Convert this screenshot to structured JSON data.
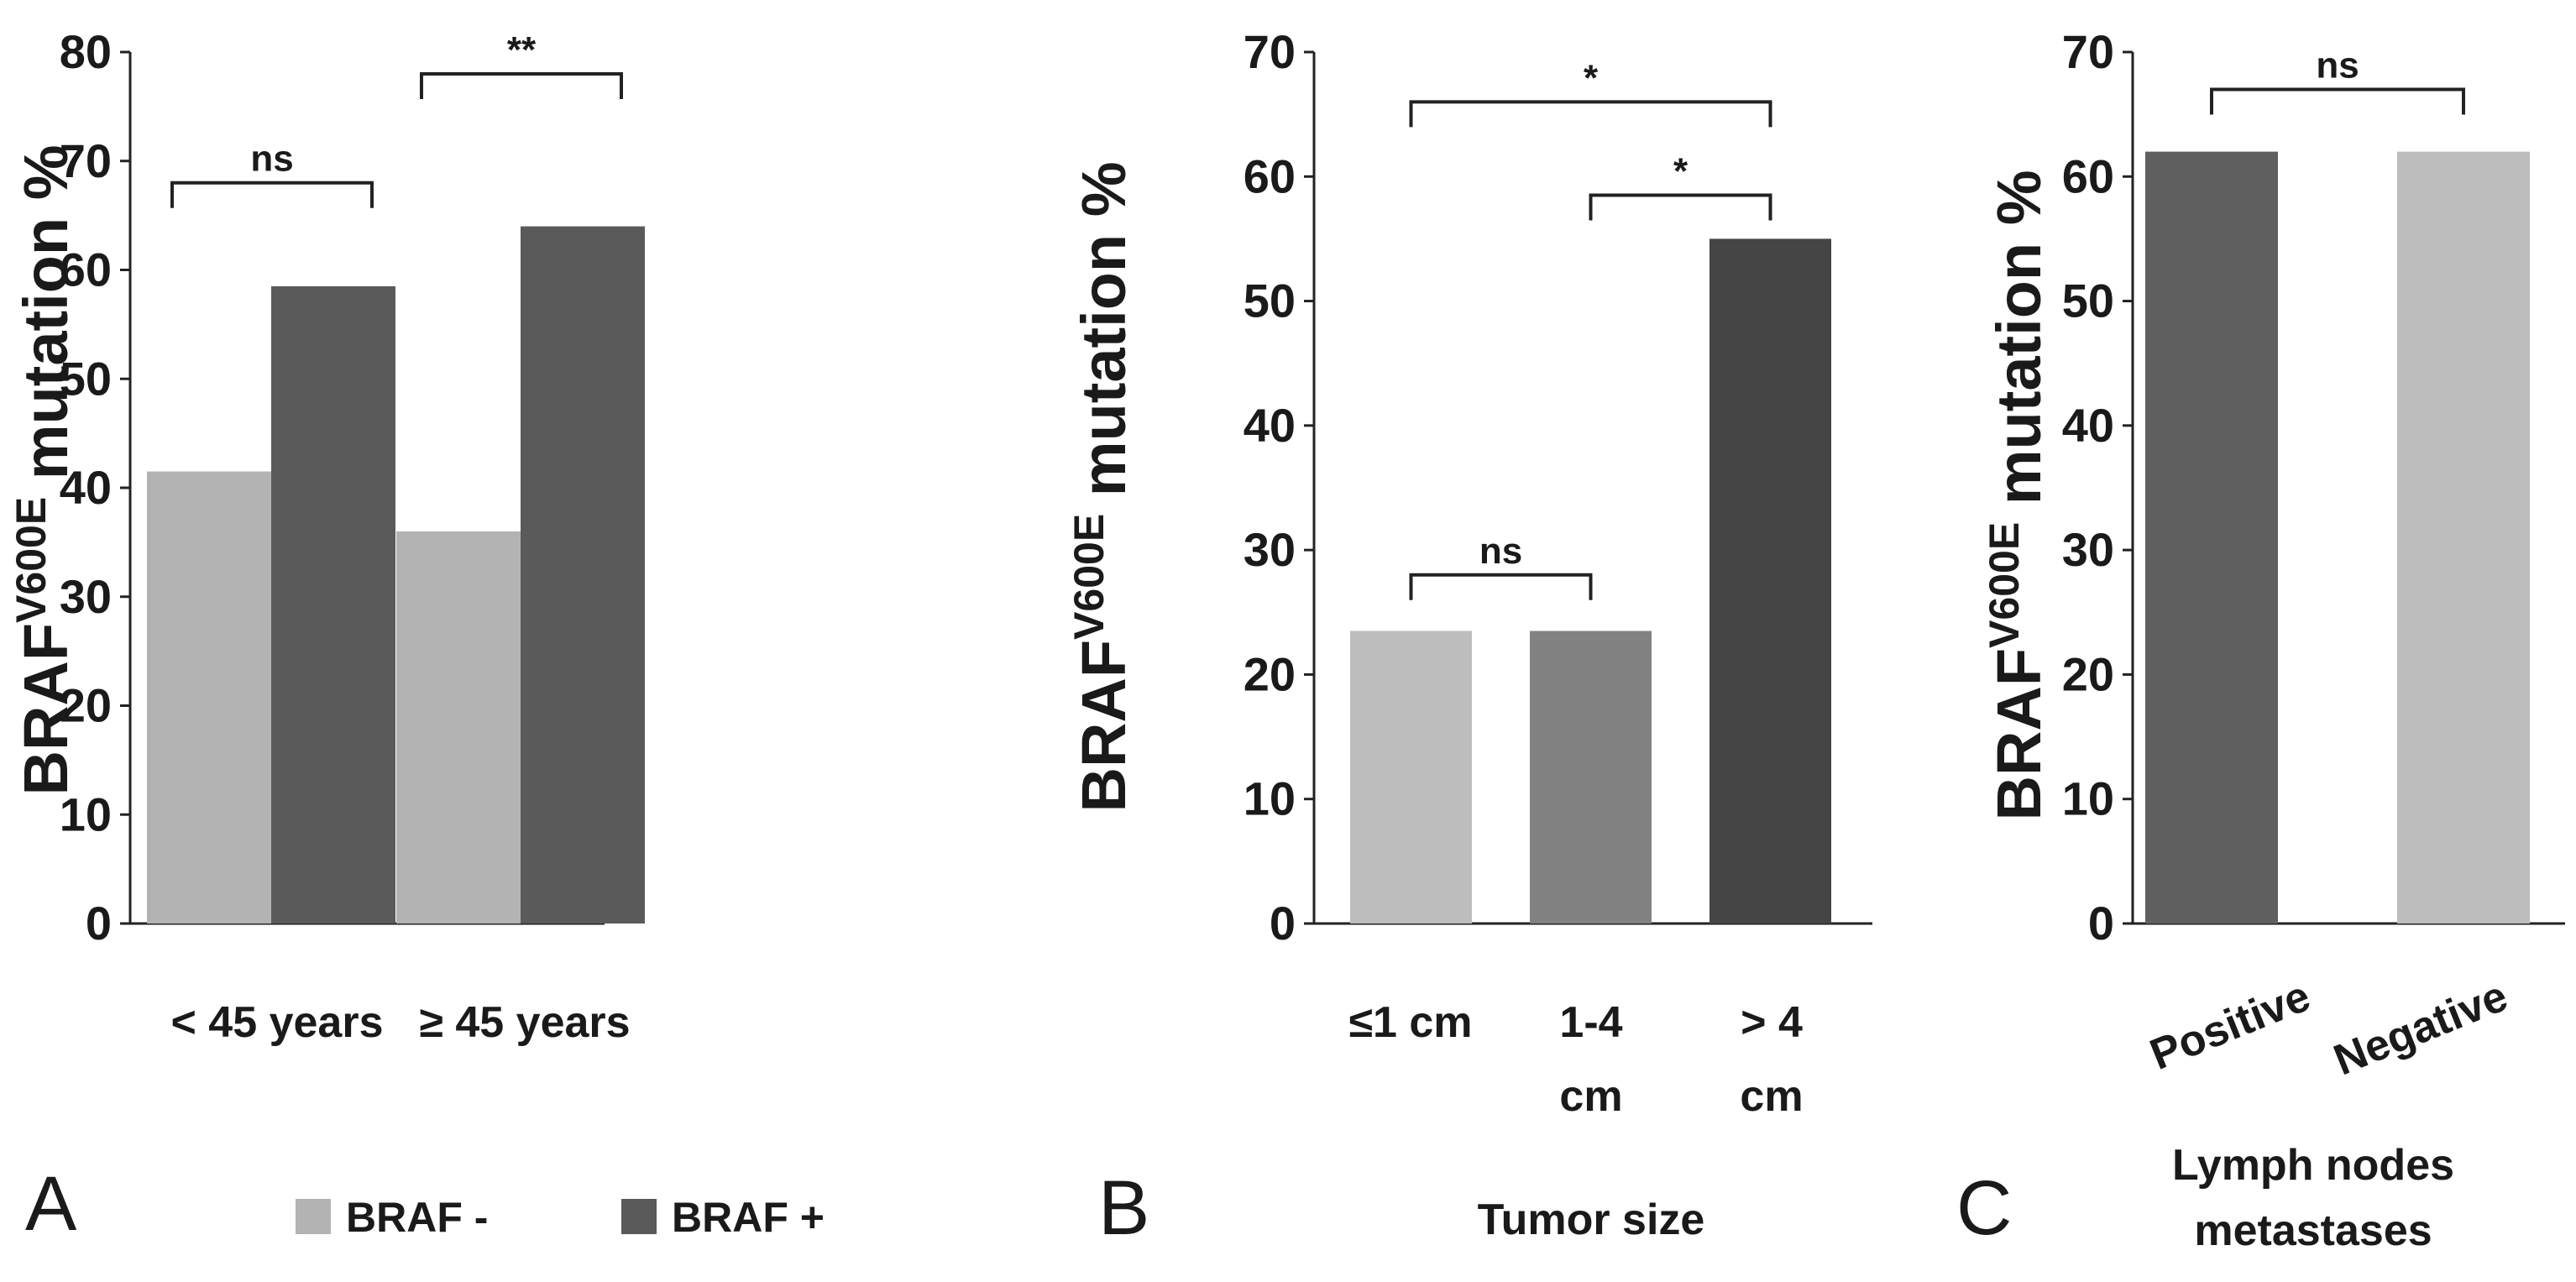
{
  "chart_data": [
    {
      "panel": "A",
      "type": "bar",
      "categories": [
        "< 45 years",
        "≥ 45 years"
      ],
      "series": [
        {
          "name": "BRAF -",
          "color": "#b3b3b3",
          "values": [
            41.5,
            36
          ]
        },
        {
          "name": "BRAF +",
          "color": "#5a5a5a",
          "values": [
            58.5,
            64
          ]
        }
      ],
      "ylabel_main": "BRAF",
      "ylabel_sup": "V600E",
      "ylabel_tail": " mutation %",
      "ylim": [
        0,
        80
      ],
      "yticks": [
        "0",
        "10",
        "20",
        "30",
        "40",
        "50",
        "60",
        "70",
        "80"
      ],
      "legend": [
        {
          "label": "BRAF -",
          "color": "#b3b3b3"
        },
        {
          "label": "BRAF +",
          "color": "#5a5a5a"
        }
      ],
      "annotations": [
        {
          "label": "ns",
          "category": "< 45 years",
          "y": 68
        },
        {
          "label": "**",
          "category": "≥ 45 years",
          "y": 78
        }
      ]
    },
    {
      "panel": "B",
      "type": "bar",
      "categories": [
        [
          "≤1 cm"
        ],
        [
          "1-4",
          "cm"
        ],
        [
          "> 4",
          "cm"
        ]
      ],
      "values": [
        23.5,
        23.5,
        55
      ],
      "colors": [
        "#bdbdbd",
        "#828282",
        "#454545"
      ],
      "xlabel": "Tumor size",
      "ylabel_main": "BRAF",
      "ylabel_sup": "V600E",
      "ylabel_tail": " mutation %",
      "ylim": [
        0,
        70
      ],
      "yticks": [
        "0",
        "10",
        "20",
        "30",
        "40",
        "50",
        "60",
        "70"
      ],
      "annotations": [
        {
          "label": "ns",
          "from": 0,
          "to": 1,
          "y": 28
        },
        {
          "label": "*",
          "from": 1,
          "to": 2,
          "y": 58.5
        },
        {
          "label": "*",
          "from": 0,
          "to": 2,
          "y": 66
        }
      ]
    },
    {
      "panel": "C",
      "type": "bar",
      "categories": [
        "Positive",
        "Negative"
      ],
      "values": [
        62,
        62
      ],
      "colors": [
        "#5f5f5f",
        "#bdbdbd"
      ],
      "xlabel_lines": [
        "Lymph nodes",
        "metastases"
      ],
      "ylabel_main": "BRAF",
      "ylabel_sup": "V600E",
      "ylabel_tail": " mutation %",
      "ylim": [
        0,
        70
      ],
      "yticks": [
        "0",
        "10",
        "20",
        "30",
        "40",
        "50",
        "60",
        "70"
      ],
      "annotations": [
        {
          "label": "ns",
          "from": 0,
          "to": 1,
          "y": 67
        }
      ]
    }
  ]
}
